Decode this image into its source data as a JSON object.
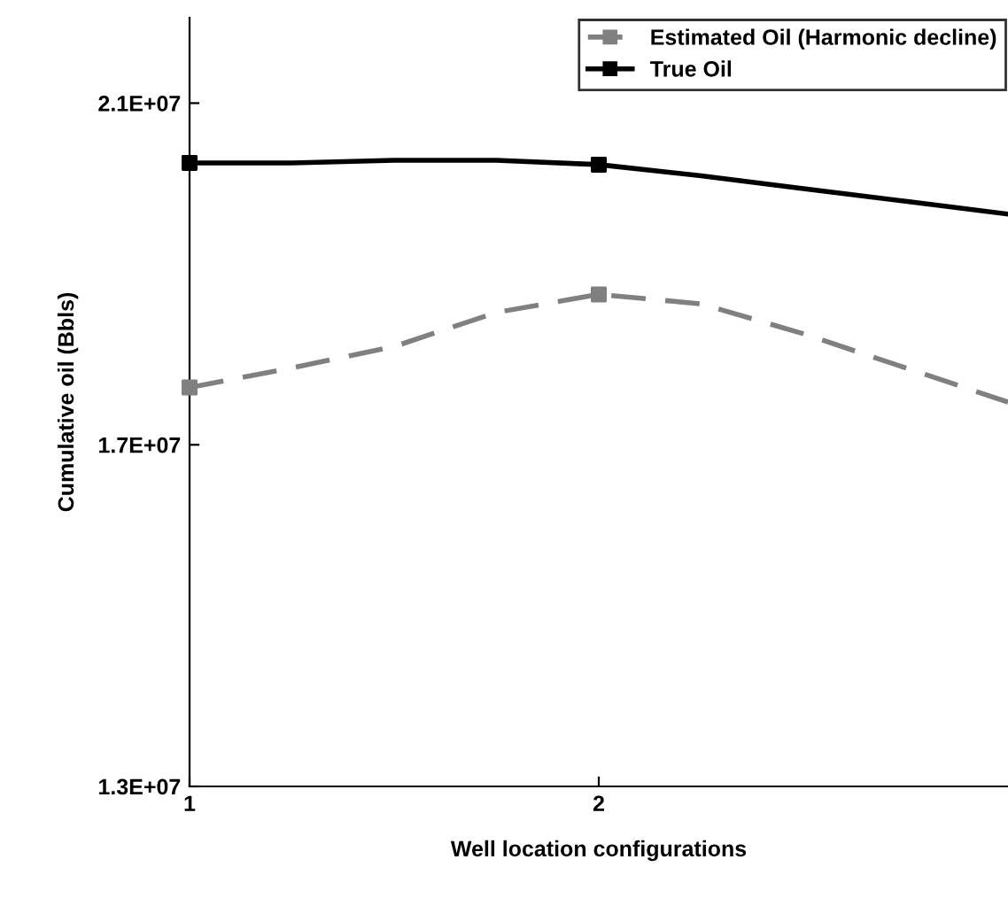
{
  "chart_data": {
    "type": "line",
    "xlabel": "Well location configurations",
    "ylabel": "Cumulative oil (Bbls)",
    "x": [
      1,
      1.25,
      1.5,
      1.75,
      2,
      2.25,
      2.5,
      2.75,
      3
    ],
    "series": [
      {
        "name": "Estimated Oil (Harmonic decline)",
        "color": "#808080",
        "values": [
          17670000,
          17900000,
          18150000,
          18550000,
          18760000,
          18650000,
          18300000,
          17900000,
          17500000
        ],
        "line_style": "dashed",
        "marker": "none"
      },
      {
        "name": "True Oil",
        "color": "#000000",
        "values": [
          20300000,
          20300000,
          20330000,
          20330000,
          20280000,
          20150000,
          20000000,
          19850000,
          19700000
        ],
        "line_style": "solid",
        "marker": "none"
      },
      {
        "type": "scatter",
        "color": "#808080",
        "values": [
          17670000,
          null,
          null,
          null,
          18760000,
          null,
          null,
          null,
          null
        ]
      },
      {
        "type": "scatter",
        "color": "#000000",
        "values": [
          20300000,
          null,
          null,
          null,
          20280000,
          null,
          null,
          null,
          null
        ]
      }
    ],
    "xlim": [
      1,
      3
    ],
    "ylim": [
      13000000,
      22000000
    ],
    "xticks": [
      1,
      2
    ],
    "yticks": [
      {
        "value": 13000000,
        "label": "1.3E+07"
      },
      {
        "value": 17000000,
        "label": "1.7E+07"
      },
      {
        "value": 21000000,
        "label": "2.1E+07"
      }
    ],
    "marker": "square",
    "legend": "top right",
    "grid": false
  }
}
